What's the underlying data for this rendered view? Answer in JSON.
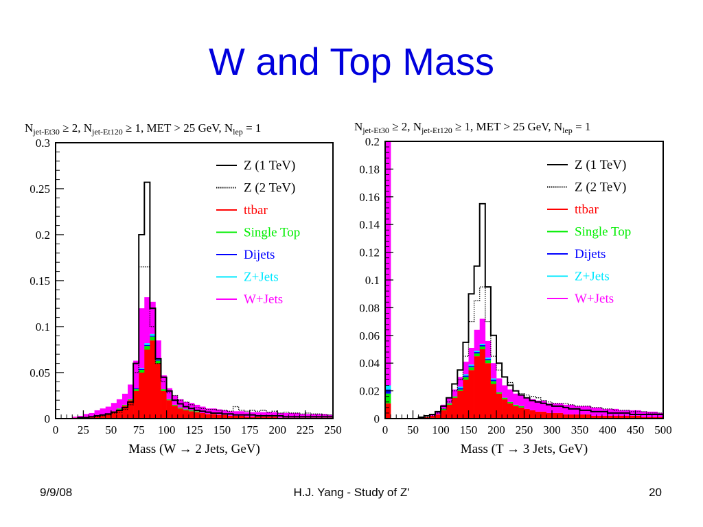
{
  "slide": {
    "title": "W and  Top Mass",
    "footer_date": "9/9/08",
    "footer_center": "H.J. Yang - Study of Z'",
    "footer_page": "20"
  },
  "colors": {
    "title": "#0000dd",
    "ttbar": "#ff0000",
    "single_top": "#00ee00",
    "dijets": "#0000ff",
    "zjets": "#00e8ff",
    "wjets": "#ff00ff",
    "z1": "#000000",
    "z2": "#000000"
  },
  "chart_data": [
    {
      "type": "histogram",
      "cut_label": {
        "pre": "N",
        "sub1": "jet-Et30",
        "mid1": " ≥ 2, N",
        "sub2": "jet-Et120",
        "mid2": " ≥ 1, MET > 25 GeV, N",
        "sub3": "lep",
        "post": " = 1"
      },
      "xlabel": "Mass (W → 2 Jets, GeV)",
      "xlim": [
        0,
        250
      ],
      "ylim": [
        0,
        0.3
      ],
      "xticks": [
        0,
        25,
        50,
        75,
        100,
        125,
        150,
        175,
        200,
        225,
        250
      ],
      "xtick_labels": [
        "0",
        "25",
        "50",
        "75",
        "100",
        "125",
        "150",
        "175",
        "200",
        "225",
        "250"
      ],
      "yticks": [
        0,
        0.05,
        0.1,
        0.15,
        0.2,
        0.25,
        0.3
      ],
      "ytick_labels": [
        "0",
        "0.05",
        "0.1",
        "0.15",
        "0.2",
        "0.25",
        "0.3"
      ],
      "bin_width": 5,
      "legend": [
        {
          "label": "Z (1 TeV)",
          "key": "z1",
          "style": "solid"
        },
        {
          "label": "Z (2 TeV)",
          "key": "z2",
          "style": "dotted"
        },
        {
          "label": "ttbar",
          "key": "ttbar",
          "style": "solid"
        },
        {
          "label": "Single Top",
          "key": "single_top",
          "style": "solid"
        },
        {
          "label": "Dijets",
          "key": "dijets",
          "style": "solid"
        },
        {
          "label": "Z+Jets",
          "key": "zjets",
          "style": "solid"
        },
        {
          "label": "W+Jets",
          "key": "wjets",
          "style": "solid"
        }
      ],
      "stacked": {
        "ttbar": [
          0,
          0,
          0,
          0.001,
          0.001,
          0.002,
          0.002,
          0.003,
          0.004,
          0.005,
          0.008,
          0.01,
          0.014,
          0.02,
          0.03,
          0.05,
          0.075,
          0.085,
          0.06,
          0.03,
          0.02,
          0.014,
          0.011,
          0.009,
          0.008,
          0.007,
          0.006,
          0.005,
          0.005,
          0.004,
          0.004,
          0.003,
          0.003,
          0.003,
          0.002,
          0.002,
          0.002,
          0.002,
          0.002,
          0.002,
          0.001,
          0.001,
          0.001,
          0.001,
          0.001,
          0.001,
          0.001,
          0.001,
          0.001,
          0.001
        ],
        "single_top": [
          0,
          0,
          0,
          0,
          0,
          0,
          0,
          0,
          0,
          0,
          0,
          0.001,
          0.001,
          0.001,
          0.002,
          0.003,
          0.004,
          0.004,
          0.003,
          0.002,
          0.001,
          0.001,
          0.001,
          0.001,
          0.001,
          0.001,
          0,
          0,
          0,
          0,
          0,
          0,
          0,
          0,
          0,
          0,
          0,
          0,
          0,
          0,
          0,
          0,
          0,
          0,
          0,
          0,
          0,
          0,
          0,
          0
        ],
        "dijets": [
          0,
          0,
          0,
          0,
          0,
          0,
          0,
          0,
          0,
          0,
          0,
          0,
          0,
          0,
          0.001,
          0.001,
          0.001,
          0.001,
          0.001,
          0,
          0,
          0,
          0,
          0,
          0,
          0,
          0,
          0,
          0,
          0,
          0,
          0,
          0,
          0,
          0,
          0,
          0,
          0,
          0,
          0,
          0,
          0,
          0,
          0,
          0,
          0,
          0,
          0,
          0,
          0
        ],
        "zjets": [
          0,
          0,
          0,
          0,
          0,
          0,
          0,
          0,
          0,
          0,
          0,
          0,
          0,
          0,
          0,
          0.001,
          0.002,
          0.002,
          0.001,
          0,
          0,
          0,
          0,
          0,
          0,
          0,
          0,
          0,
          0,
          0,
          0,
          0,
          0,
          0,
          0,
          0,
          0,
          0,
          0,
          0,
          0,
          0,
          0,
          0,
          0,
          0,
          0,
          0,
          0,
          0
        ],
        "wjets": [
          0,
          0,
          0,
          0.001,
          0.002,
          0.003,
          0.004,
          0.006,
          0.007,
          0.008,
          0.009,
          0.01,
          0.012,
          0.016,
          0.03,
          0.065,
          0.05,
          0.035,
          0.02,
          0.015,
          0.012,
          0.01,
          0.009,
          0.008,
          0.008,
          0.007,
          0.007,
          0.006,
          0.006,
          0.006,
          0.005,
          0.005,
          0.005,
          0.005,
          0.005,
          0.005,
          0.005,
          0.005,
          0.005,
          0.005,
          0.005,
          0.005,
          0.005,
          0.005,
          0.004,
          0.004,
          0.004,
          0.004,
          0.004,
          0.003
        ]
      },
      "z1": [
        0,
        0,
        0,
        0,
        0.001,
        0.001,
        0.002,
        0.003,
        0.004,
        0.005,
        0.007,
        0.009,
        0.012,
        0.018,
        0.06,
        0.2,
        0.257,
        0.12,
        0.065,
        0.045,
        0.03,
        0.02,
        0.016,
        0.013,
        0.011,
        0.009,
        0.008,
        0.007,
        0.006,
        0.006,
        0.005,
        0.005,
        0.004,
        0.004,
        0.004,
        0.004,
        0.003,
        0.003,
        0.003,
        0.003,
        0.003,
        0.002,
        0.002,
        0.002,
        0.002,
        0.002,
        0.002,
        0.002,
        0.002,
        0.002
      ],
      "z2": [
        0,
        0,
        0,
        0,
        0.001,
        0.001,
        0.002,
        0.002,
        0.003,
        0.004,
        0.006,
        0.007,
        0.01,
        0.015,
        0.05,
        0.165,
        0.165,
        0.1,
        0.06,
        0.04,
        0.028,
        0.025,
        0.02,
        0.018,
        0.015,
        0.012,
        0.011,
        0.01,
        0.01,
        0.009,
        0.009,
        0.008,
        0.013,
        0.009,
        0.008,
        0.009,
        0.008,
        0.009,
        0.007,
        0.008,
        0.006,
        0.007,
        0.006,
        0.006,
        0.005,
        0.006,
        0.005,
        0.005,
        0.004,
        0.004
      ]
    },
    {
      "type": "histogram",
      "cut_label": {
        "pre": "N",
        "sub1": "jet-Et30",
        "mid1": " ≥ 2, N",
        "sub2": "jet-Et120",
        "mid2": " ≥ 1, MET > 25 GeV, N",
        "sub3": "lep",
        "post": " = 1"
      },
      "xlabel": "Mass (T → 3 Jets, GeV)",
      "xlim": [
        0,
        500
      ],
      "ylim": [
        0,
        0.2
      ],
      "xticks": [
        0,
        50,
        100,
        150,
        200,
        250,
        300,
        350,
        400,
        450,
        500
      ],
      "xtick_labels": [
        "0",
        "50",
        "100",
        "150",
        "200",
        "250",
        "300",
        "350",
        "400",
        "450",
        "500"
      ],
      "yticks": [
        0,
        0.02,
        0.04,
        0.06,
        0.08,
        0.1,
        0.12,
        0.14,
        0.16,
        0.18,
        0.2
      ],
      "ytick_labels": [
        "0",
        "0.02",
        "0.04",
        "0.06",
        "0.08",
        "0.1",
        "0.12",
        "0.14",
        "0.16",
        "0.18",
        "0.2"
      ],
      "bin_width": 10,
      "legend": [
        {
          "label": "Z (1 TeV)",
          "key": "z1",
          "style": "solid"
        },
        {
          "label": "Z (2 TeV)",
          "key": "z2",
          "style": "dotted"
        },
        {
          "label": "ttbar",
          "key": "ttbar",
          "style": "solid"
        },
        {
          "label": "Single Top",
          "key": "single_top",
          "style": "solid"
        },
        {
          "label": "Dijets",
          "key": "dijets",
          "style": "solid"
        },
        {
          "label": "Z+Jets",
          "key": "zjets",
          "style": "solid"
        },
        {
          "label": "W+Jets",
          "key": "wjets",
          "style": "solid"
        }
      ],
      "stacked": {
        "ttbar": [
          0.011,
          0,
          0,
          0,
          0,
          0,
          0.001,
          0.001,
          0.002,
          0.003,
          0.006,
          0.01,
          0.015,
          0.02,
          0.028,
          0.035,
          0.045,
          0.05,
          0.04,
          0.025,
          0.018,
          0.014,
          0.011,
          0.009,
          0.008,
          0.007,
          0.006,
          0.005,
          0.005,
          0.004,
          0.004,
          0.004,
          0.003,
          0.003,
          0.003,
          0.003,
          0.003,
          0.002,
          0.002,
          0.002,
          0.002,
          0.002,
          0.002,
          0.002,
          0.002,
          0.002,
          0.001,
          0.001,
          0.001,
          0.001
        ],
        "single_top": [
          0.007,
          0,
          0,
          0,
          0,
          0,
          0,
          0,
          0,
          0,
          0.001,
          0.001,
          0.001,
          0.001,
          0.002,
          0.002,
          0.002,
          0.002,
          0.002,
          0.002,
          0.001,
          0.001,
          0.001,
          0.001,
          0.001,
          0,
          0,
          0,
          0,
          0,
          0,
          0,
          0,
          0,
          0,
          0,
          0,
          0,
          0,
          0,
          0,
          0,
          0,
          0,
          0,
          0,
          0,
          0,
          0,
          0
        ],
        "dijets": [
          0.003,
          0,
          0,
          0,
          0,
          0,
          0,
          0,
          0,
          0,
          0,
          0,
          0,
          0.001,
          0.001,
          0.001,
          0.001,
          0.001,
          0.001,
          0.001,
          0,
          0,
          0,
          0,
          0,
          0,
          0,
          0,
          0,
          0,
          0,
          0,
          0,
          0,
          0,
          0,
          0,
          0,
          0,
          0,
          0,
          0,
          0,
          0,
          0,
          0,
          0,
          0,
          0,
          0
        ],
        "zjets": [
          0.003,
          0,
          0,
          0,
          0,
          0,
          0,
          0,
          0,
          0,
          0,
          0,
          0,
          0.001,
          0.001,
          0.001,
          0.001,
          0.001,
          0.001,
          0.001,
          0,
          0,
          0,
          0,
          0,
          0,
          0,
          0,
          0,
          0,
          0,
          0,
          0,
          0,
          0,
          0,
          0,
          0,
          0,
          0,
          0,
          0,
          0,
          0,
          0,
          0,
          0,
          0,
          0,
          0
        ],
        "wjets": [
          0.176,
          0,
          0,
          0,
          0,
          0,
          0,
          0,
          0.001,
          0.002,
          0.003,
          0.004,
          0.005,
          0.007,
          0.009,
          0.012,
          0.015,
          0.018,
          0.012,
          0.011,
          0.01,
          0.009,
          0.009,
          0.008,
          0.008,
          0.008,
          0.008,
          0.008,
          0.008,
          0.007,
          0.007,
          0.007,
          0.007,
          0.007,
          0.006,
          0.006,
          0.006,
          0.006,
          0.006,
          0.005,
          0.005,
          0.005,
          0.004,
          0.004,
          0.004,
          0.004,
          0.004,
          0.004,
          0.004,
          0.003
        ]
      },
      "z1": [
        0,
        0,
        0,
        0,
        0,
        0,
        0.001,
        0.002,
        0.003,
        0.005,
        0.009,
        0.015,
        0.025,
        0.035,
        0.055,
        0.09,
        0.11,
        0.155,
        0.095,
        0.06,
        0.04,
        0.03,
        0.024,
        0.02,
        0.017,
        0.015,
        0.013,
        0.012,
        0.011,
        0.01,
        0.009,
        0.009,
        0.008,
        0.007,
        0.007,
        0.006,
        0.006,
        0.005,
        0.005,
        0.005,
        0.004,
        0.004,
        0.004,
        0.004,
        0.003,
        0.003,
        0.003,
        0.003,
        0.003,
        0.003
      ],
      "z2": [
        0,
        0,
        0,
        0,
        0,
        0,
        0.001,
        0.001,
        0.002,
        0.004,
        0.007,
        0.012,
        0.02,
        0.028,
        0.045,
        0.07,
        0.085,
        0.095,
        0.07,
        0.045,
        0.035,
        0.03,
        0.026,
        0.02,
        0.018,
        0.017,
        0.016,
        0.015,
        0.013,
        0.012,
        0.011,
        0.011,
        0.011,
        0.01,
        0.009,
        0.009,
        0.009,
        0.008,
        0.008,
        0.007,
        0.007,
        0.006,
        0.006,
        0.006,
        0.005,
        0.005,
        0.005,
        0.004,
        0.004,
        0.004
      ]
    }
  ]
}
